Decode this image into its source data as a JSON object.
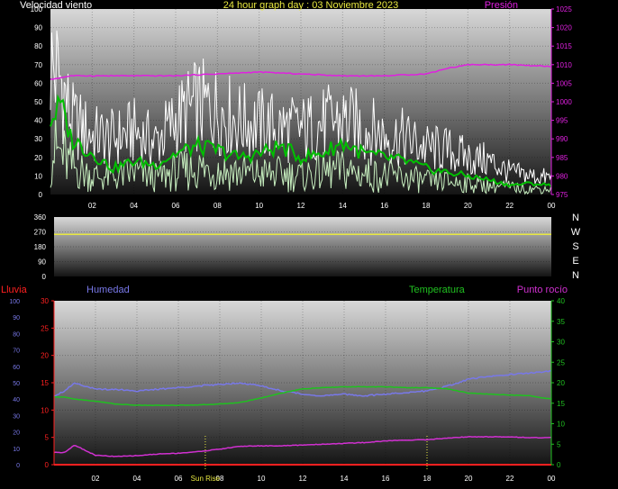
{
  "colors": {
    "background": "#000000",
    "wind_gust": "#ffffff",
    "wind_speed": "#c8f0c0",
    "wind_avg": "#00c000",
    "pressure": "#e020e0",
    "direction": "#e8e840",
    "humidity": "#7878e8",
    "temperature": "#20c020",
    "dewpoint": "#d030d0",
    "rain": "#ff2020",
    "top_axis_left": "#ffffff",
    "top_axis_right": "#e020e0",
    "date_label": "#e8e840",
    "sunrise": "#e8e840"
  },
  "chart_data": [
    {
      "type": "line",
      "title": "24 hour graph day : 03 Noviembre 2023",
      "left_axis_label": "Velocidad viento",
      "right_axis_label": "Presión",
      "x_ticks": [
        "02",
        "04",
        "06",
        "08",
        "10",
        "12",
        "14",
        "16",
        "18",
        "20",
        "22",
        "00"
      ],
      "y_left_ticks": [
        "0",
        "10",
        "20",
        "30",
        "40",
        "50",
        "60",
        "70",
        "80",
        "90",
        "100"
      ],
      "y_left_range": [
        0,
        100
      ],
      "y_right_ticks": [
        "975",
        "980",
        "985",
        "990",
        "995",
        "1000",
        "1005",
        "1010",
        "1015",
        "1020",
        "1025"
      ],
      "y_right_range": [
        975,
        1025
      ],
      "grid": true,
      "series": [
        {
          "key": "gust",
          "hours": [
            0,
            0.5,
            1,
            2,
            3,
            4,
            5,
            6,
            7,
            8,
            9,
            10,
            11,
            12,
            13,
            14,
            15,
            16,
            17,
            18,
            19,
            20,
            21,
            22,
            23,
            24
          ],
          "values": [
            70,
            62,
            40,
            32,
            30,
            34,
            28,
            40,
            48,
            46,
            40,
            38,
            36,
            35,
            38,
            40,
            36,
            32,
            30,
            25,
            24,
            20,
            18,
            12,
            10,
            9
          ]
        },
        {
          "key": "speed",
          "hours": [
            0,
            0.5,
            1,
            2,
            3,
            4,
            5,
            6,
            7,
            8,
            9,
            10,
            11,
            12,
            13,
            14,
            15,
            16,
            17,
            18,
            19,
            20,
            21,
            22,
            23,
            24
          ],
          "values": [
            25,
            22,
            15,
            10,
            9,
            12,
            9,
            12,
            14,
            13,
            12,
            11,
            11,
            10,
            12,
            13,
            11,
            10,
            9,
            7,
            7,
            6,
            5,
            4,
            3,
            3
          ]
        },
        {
          "key": "avg",
          "hours": [
            0,
            0.5,
            1,
            2,
            3,
            4,
            5,
            6,
            7,
            8,
            9,
            10,
            11,
            12,
            13,
            14,
            15,
            16,
            17,
            18,
            19,
            20,
            21,
            22,
            23,
            24
          ],
          "values": [
            40,
            48,
            30,
            22,
            14,
            18,
            16,
            22,
            26,
            24,
            20,
            22,
            26,
            20,
            22,
            28,
            22,
            20,
            18,
            14,
            12,
            10,
            8,
            5,
            6,
            5
          ]
        },
        {
          "key": "pressure",
          "axis": "right",
          "hours": [
            0,
            1,
            2,
            4,
            6,
            8,
            10,
            12,
            14,
            16,
            18,
            19,
            20,
            22,
            24
          ],
          "values": [
            1006.0,
            1007.0,
            1007.0,
            1007.0,
            1007.0,
            1007.5,
            1008.0,
            1007.5,
            1007.0,
            1007.0,
            1007.5,
            1009.0,
            1010.0,
            1010.0,
            1009.5
          ]
        }
      ]
    },
    {
      "type": "line",
      "x_ticks": [
        "02",
        "04",
        "06",
        "08",
        "10",
        "12",
        "14",
        "16",
        "18",
        "20",
        "22",
        "00"
      ],
      "y_ticks": [
        "0",
        "90",
        "180",
        "270",
        "360"
      ],
      "y_range": [
        0,
        360
      ],
      "right_labels": [
        "N",
        "W",
        "S",
        "E",
        "N"
      ],
      "grid": true,
      "series": [
        {
          "key": "direction",
          "hours": [
            0,
            24
          ],
          "values": [
            255,
            255
          ]
        }
      ]
    },
    {
      "type": "line",
      "labels": {
        "rain": "Lluvia",
        "humidity": "Humedad",
        "temperature": "Temperatura",
        "dewpoint": "Punto rocío"
      },
      "x_ticks": [
        "02",
        "04",
        "06",
        "08",
        "10",
        "12",
        "14",
        "16",
        "18",
        "20",
        "22",
        "00"
      ],
      "humidity_ticks": [
        "0",
        "10",
        "20",
        "30",
        "40",
        "50",
        "60",
        "70",
        "80",
        "90",
        "100"
      ],
      "humidity_range": [
        0,
        100
      ],
      "rain_ticks": [
        "0",
        "5",
        "10",
        "15",
        "20",
        "25",
        "30"
      ],
      "rain_range": [
        0,
        30
      ],
      "temp_ticks": [
        "0",
        "5",
        "10",
        "15",
        "20",
        "25",
        "30",
        "35",
        "40"
      ],
      "temp_range": [
        0,
        40
      ],
      "sunrise_label": "Sun Rise",
      "sunrise_hour": 7.3,
      "sunset_hour": 18.0,
      "grid": true,
      "series": [
        {
          "key": "humidity",
          "axis": "humidity",
          "hours": [
            0,
            0.5,
            1,
            1.5,
            2,
            3,
            4,
            5,
            6,
            7,
            8,
            9,
            10,
            11,
            12,
            13,
            14,
            15,
            16,
            17,
            18,
            19,
            20,
            21,
            22,
            23,
            24
          ],
          "values": [
            42,
            45,
            50,
            48,
            46,
            46,
            45,
            46,
            47,
            48,
            49,
            50,
            48,
            45,
            43,
            42,
            43,
            42,
            43,
            44,
            45,
            48,
            52,
            54,
            55,
            56,
            57
          ]
        },
        {
          "key": "temperature",
          "axis": "temp",
          "hours": [
            0,
            0.5,
            1,
            2,
            3,
            4,
            5,
            6,
            7,
            8,
            9,
            10,
            11,
            12,
            13,
            14,
            15,
            16,
            17,
            18,
            19,
            20,
            21,
            22,
            23,
            24
          ],
          "values": [
            16.5,
            16.5,
            16.0,
            15.5,
            14.8,
            14.5,
            14.5,
            14.5,
            14.6,
            14.8,
            15.2,
            16.3,
            17.5,
            18.5,
            18.8,
            19.0,
            19.0,
            19.0,
            18.8,
            18.8,
            18.5,
            17.5,
            17.2,
            17.0,
            16.8,
            16.0
          ]
        },
        {
          "key": "dewpoint",
          "axis": "temp",
          "hours": [
            0,
            0.5,
            1,
            1.5,
            2,
            3,
            4,
            5,
            6,
            7,
            8,
            9,
            10,
            11,
            12,
            13,
            14,
            15,
            16,
            17,
            18,
            19,
            20,
            21,
            22,
            23,
            24
          ],
          "values": [
            3.0,
            3.0,
            4.8,
            3.5,
            2.3,
            2.0,
            2.2,
            2.6,
            2.8,
            3.2,
            3.8,
            4.5,
            4.6,
            4.6,
            4.8,
            5.0,
            5.2,
            5.4,
            5.8,
            6.0,
            6.1,
            6.5,
            6.8,
            6.8,
            6.8,
            6.6,
            6.6
          ]
        },
        {
          "key": "rain",
          "axis": "rain",
          "hours": [
            0,
            24
          ],
          "values": [
            0,
            0
          ]
        }
      ]
    }
  ]
}
